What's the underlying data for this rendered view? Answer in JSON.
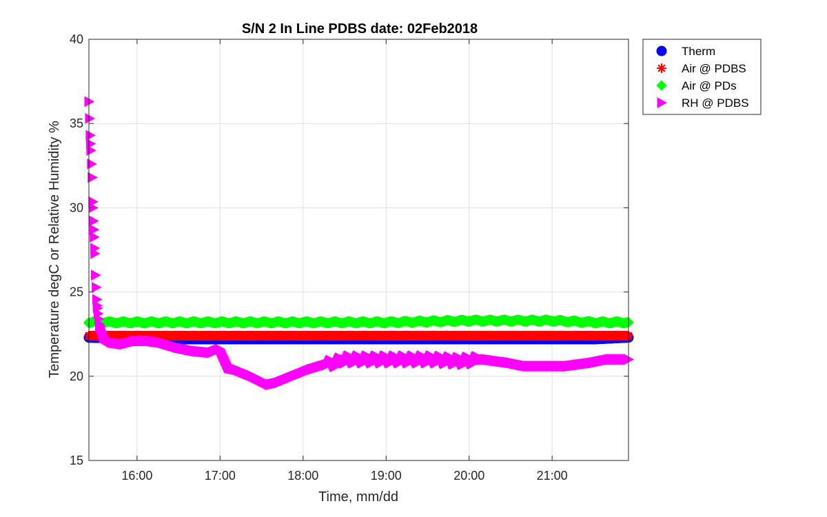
{
  "chart_data": {
    "type": "scatter",
    "title": "S/N 2 In Line PDBS date: 02Feb2018",
    "xlabel": "Time, mm/dd",
    "ylabel": "Temperature degC or Relative Humidity %",
    "x_unit": "hours",
    "xlim": [
      15.42,
      21.92
    ],
    "ylim": [
      15,
      40
    ],
    "x_ticks": [
      16,
      17,
      18,
      19,
      20,
      21
    ],
    "x_tick_labels": [
      "16:00",
      "17:00",
      "18:00",
      "19:00",
      "20:00",
      "21:00"
    ],
    "y_ticks": [
      15,
      20,
      25,
      30,
      35,
      40
    ],
    "y_tick_labels": [
      "15",
      "20",
      "25",
      "30",
      "35",
      "40"
    ],
    "grid": true,
    "legend_position": "outside-top-right",
    "series": [
      {
        "name": "Therm",
        "marker": "circle",
        "color": "#0000ff",
        "x": [
          15.42,
          16.0,
          17.0,
          18.0,
          19.0,
          20.0,
          21.0,
          21.5,
          21.92
        ],
        "y": [
          22.3,
          22.2,
          22.2,
          22.2,
          22.2,
          22.2,
          22.2,
          22.2,
          22.3
        ]
      },
      {
        "name": "Air @ PDBS",
        "marker": "asterisk",
        "color": "#ff0000",
        "x": [
          15.42,
          16.0,
          17.0,
          18.0,
          19.0,
          20.0,
          21.0,
          21.5,
          21.92
        ],
        "y": [
          22.4,
          22.4,
          22.4,
          22.4,
          22.4,
          22.4,
          22.4,
          22.4,
          22.4
        ]
      },
      {
        "name": "Air @ PDs",
        "marker": "diamond",
        "color": "#00ff00",
        "x": [
          15.42,
          16.0,
          17.0,
          18.0,
          19.0,
          20.0,
          21.0,
          21.5,
          21.92
        ],
        "y": [
          23.2,
          23.2,
          23.2,
          23.2,
          23.2,
          23.3,
          23.3,
          23.2,
          23.2
        ]
      },
      {
        "name": "RH @ PDBS",
        "marker": "triangle-right",
        "color": "#ff00ff",
        "x": [
          15.42,
          15.44,
          15.46,
          15.47,
          15.48,
          15.49,
          15.5,
          15.52,
          15.55,
          15.6,
          15.7,
          15.85,
          16.0,
          16.15,
          16.3,
          16.5,
          16.7,
          16.9,
          17.0,
          17.1,
          17.2,
          17.4,
          17.6,
          17.7,
          17.9,
          18.1,
          18.3,
          18.4,
          18.5,
          18.7,
          19.0,
          19.3,
          19.6,
          19.9,
          20.2,
          20.5,
          20.7,
          21.0,
          21.2,
          21.5,
          21.7,
          21.92
        ],
        "y": [
          36.3,
          33.8,
          31.8,
          30.0,
          28.7,
          27.6,
          26.0,
          24.2,
          23.0,
          22.3,
          22.0,
          21.9,
          22.1,
          22.1,
          22.0,
          21.7,
          21.5,
          21.4,
          21.6,
          20.5,
          20.4,
          20.0,
          19.5,
          19.6,
          20.0,
          20.4,
          20.7,
          20.8,
          21.0,
          21.0,
          21.0,
          21.0,
          21.0,
          20.9,
          21.0,
          20.8,
          20.6,
          20.6,
          20.6,
          20.8,
          21.0,
          21.0
        ]
      }
    ]
  }
}
